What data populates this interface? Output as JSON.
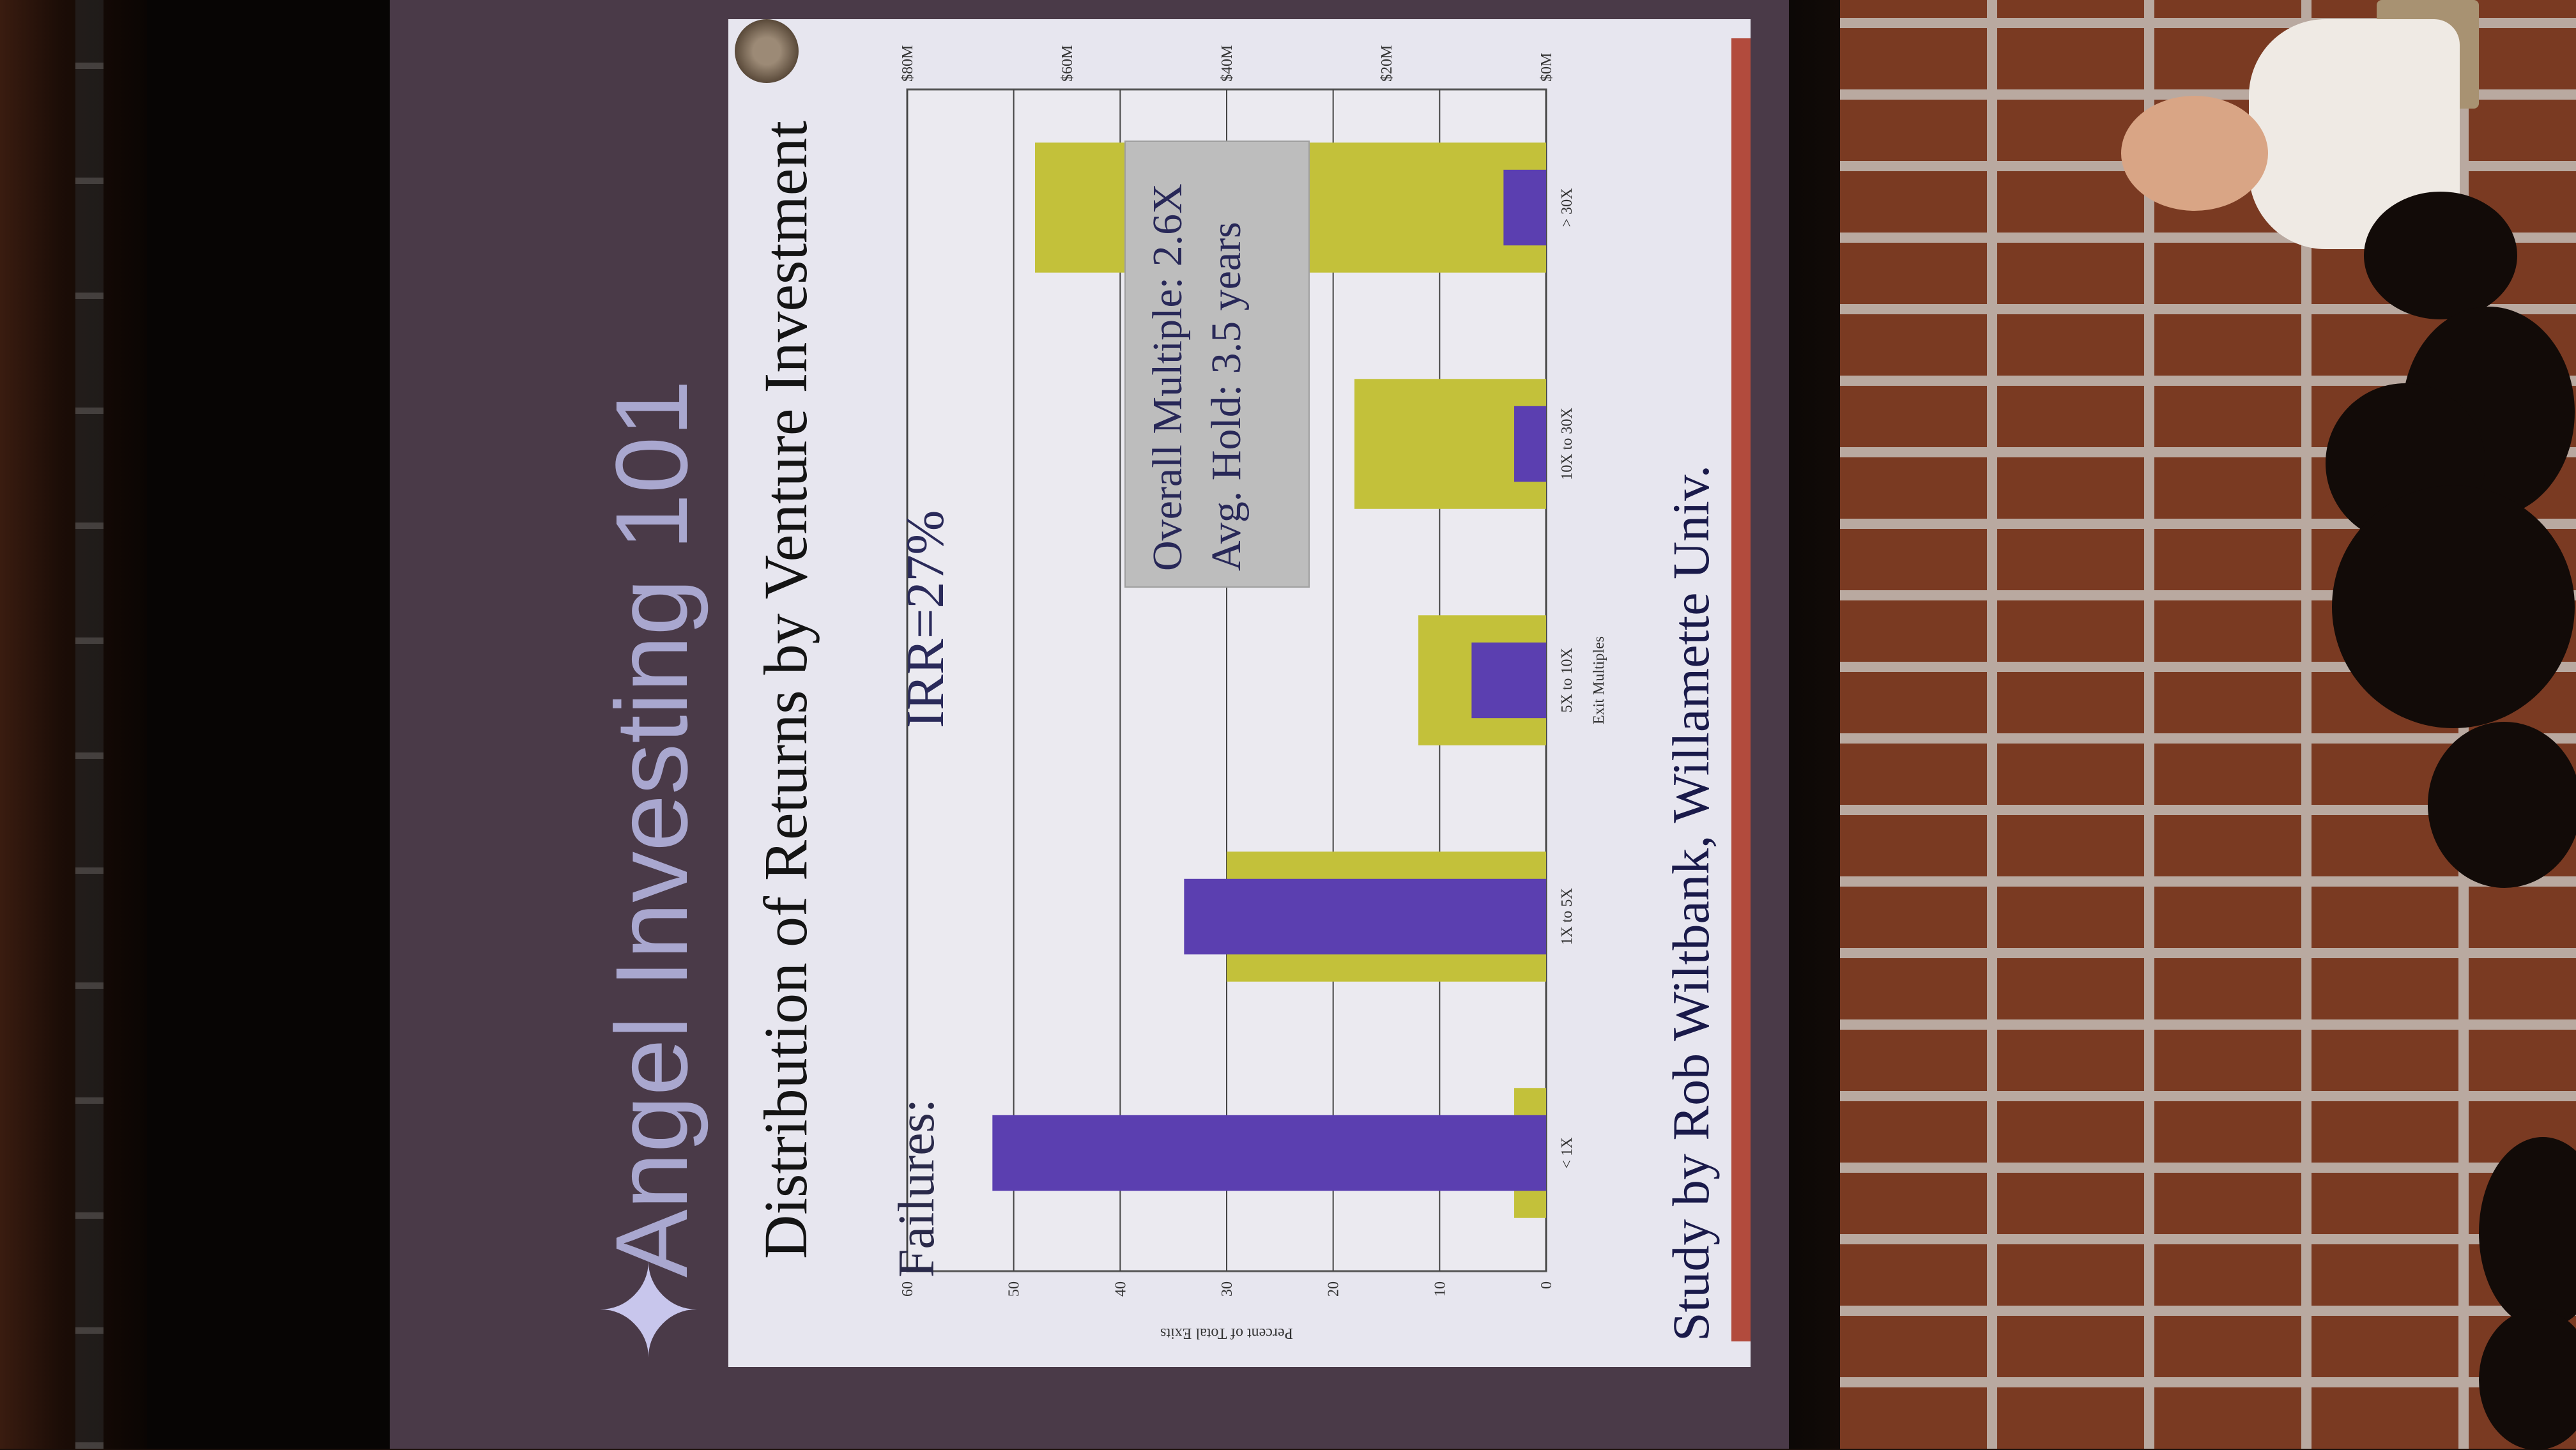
{
  "slide": {
    "title": "Angel Investing 101",
    "chart_title": "Distribution of Returns by Venture Investment",
    "failures_label": "Failures:",
    "irr_label": "IRR=27%",
    "stats": [
      "Overall Multiple: 2.6X",
      "Avg. Hold: 3.5 years"
    ],
    "footer": "Study by Rob Wiltbank, Willamette Univ."
  },
  "chart_data": {
    "type": "bar",
    "ylabel": "Percent of Total Exits",
    "xlabel": "Exit Multiples",
    "ylim": [
      0,
      60
    ],
    "yticks": [
      "0",
      "10",
      "20",
      "30",
      "40",
      "50",
      "60"
    ],
    "categories": [
      "< 1X",
      "1X to 5X",
      "5X to 10X",
      "10X to 30X",
      "> 30X"
    ],
    "series": [
      {
        "values": [
          52,
          34,
          7,
          3,
          4
        ],
        "color": "#5b3fb0"
      },
      {
        "values": [
          3,
          30,
          12,
          18,
          48
        ],
        "color": "#c3c13a"
      }
    ],
    "right_axis_ticks": [
      "$0M",
      "$20M",
      "$40M",
      "$60M",
      "$80M"
    ],
    "grid": true
  },
  "colors": {
    "panel": "#e7e6ef",
    "purple": "#5b3fb0",
    "olive": "#c3c13a",
    "footer_bar": "#b24b3d"
  },
  "icons": [
    "star-logo-icon",
    "university-seal-icon"
  ]
}
